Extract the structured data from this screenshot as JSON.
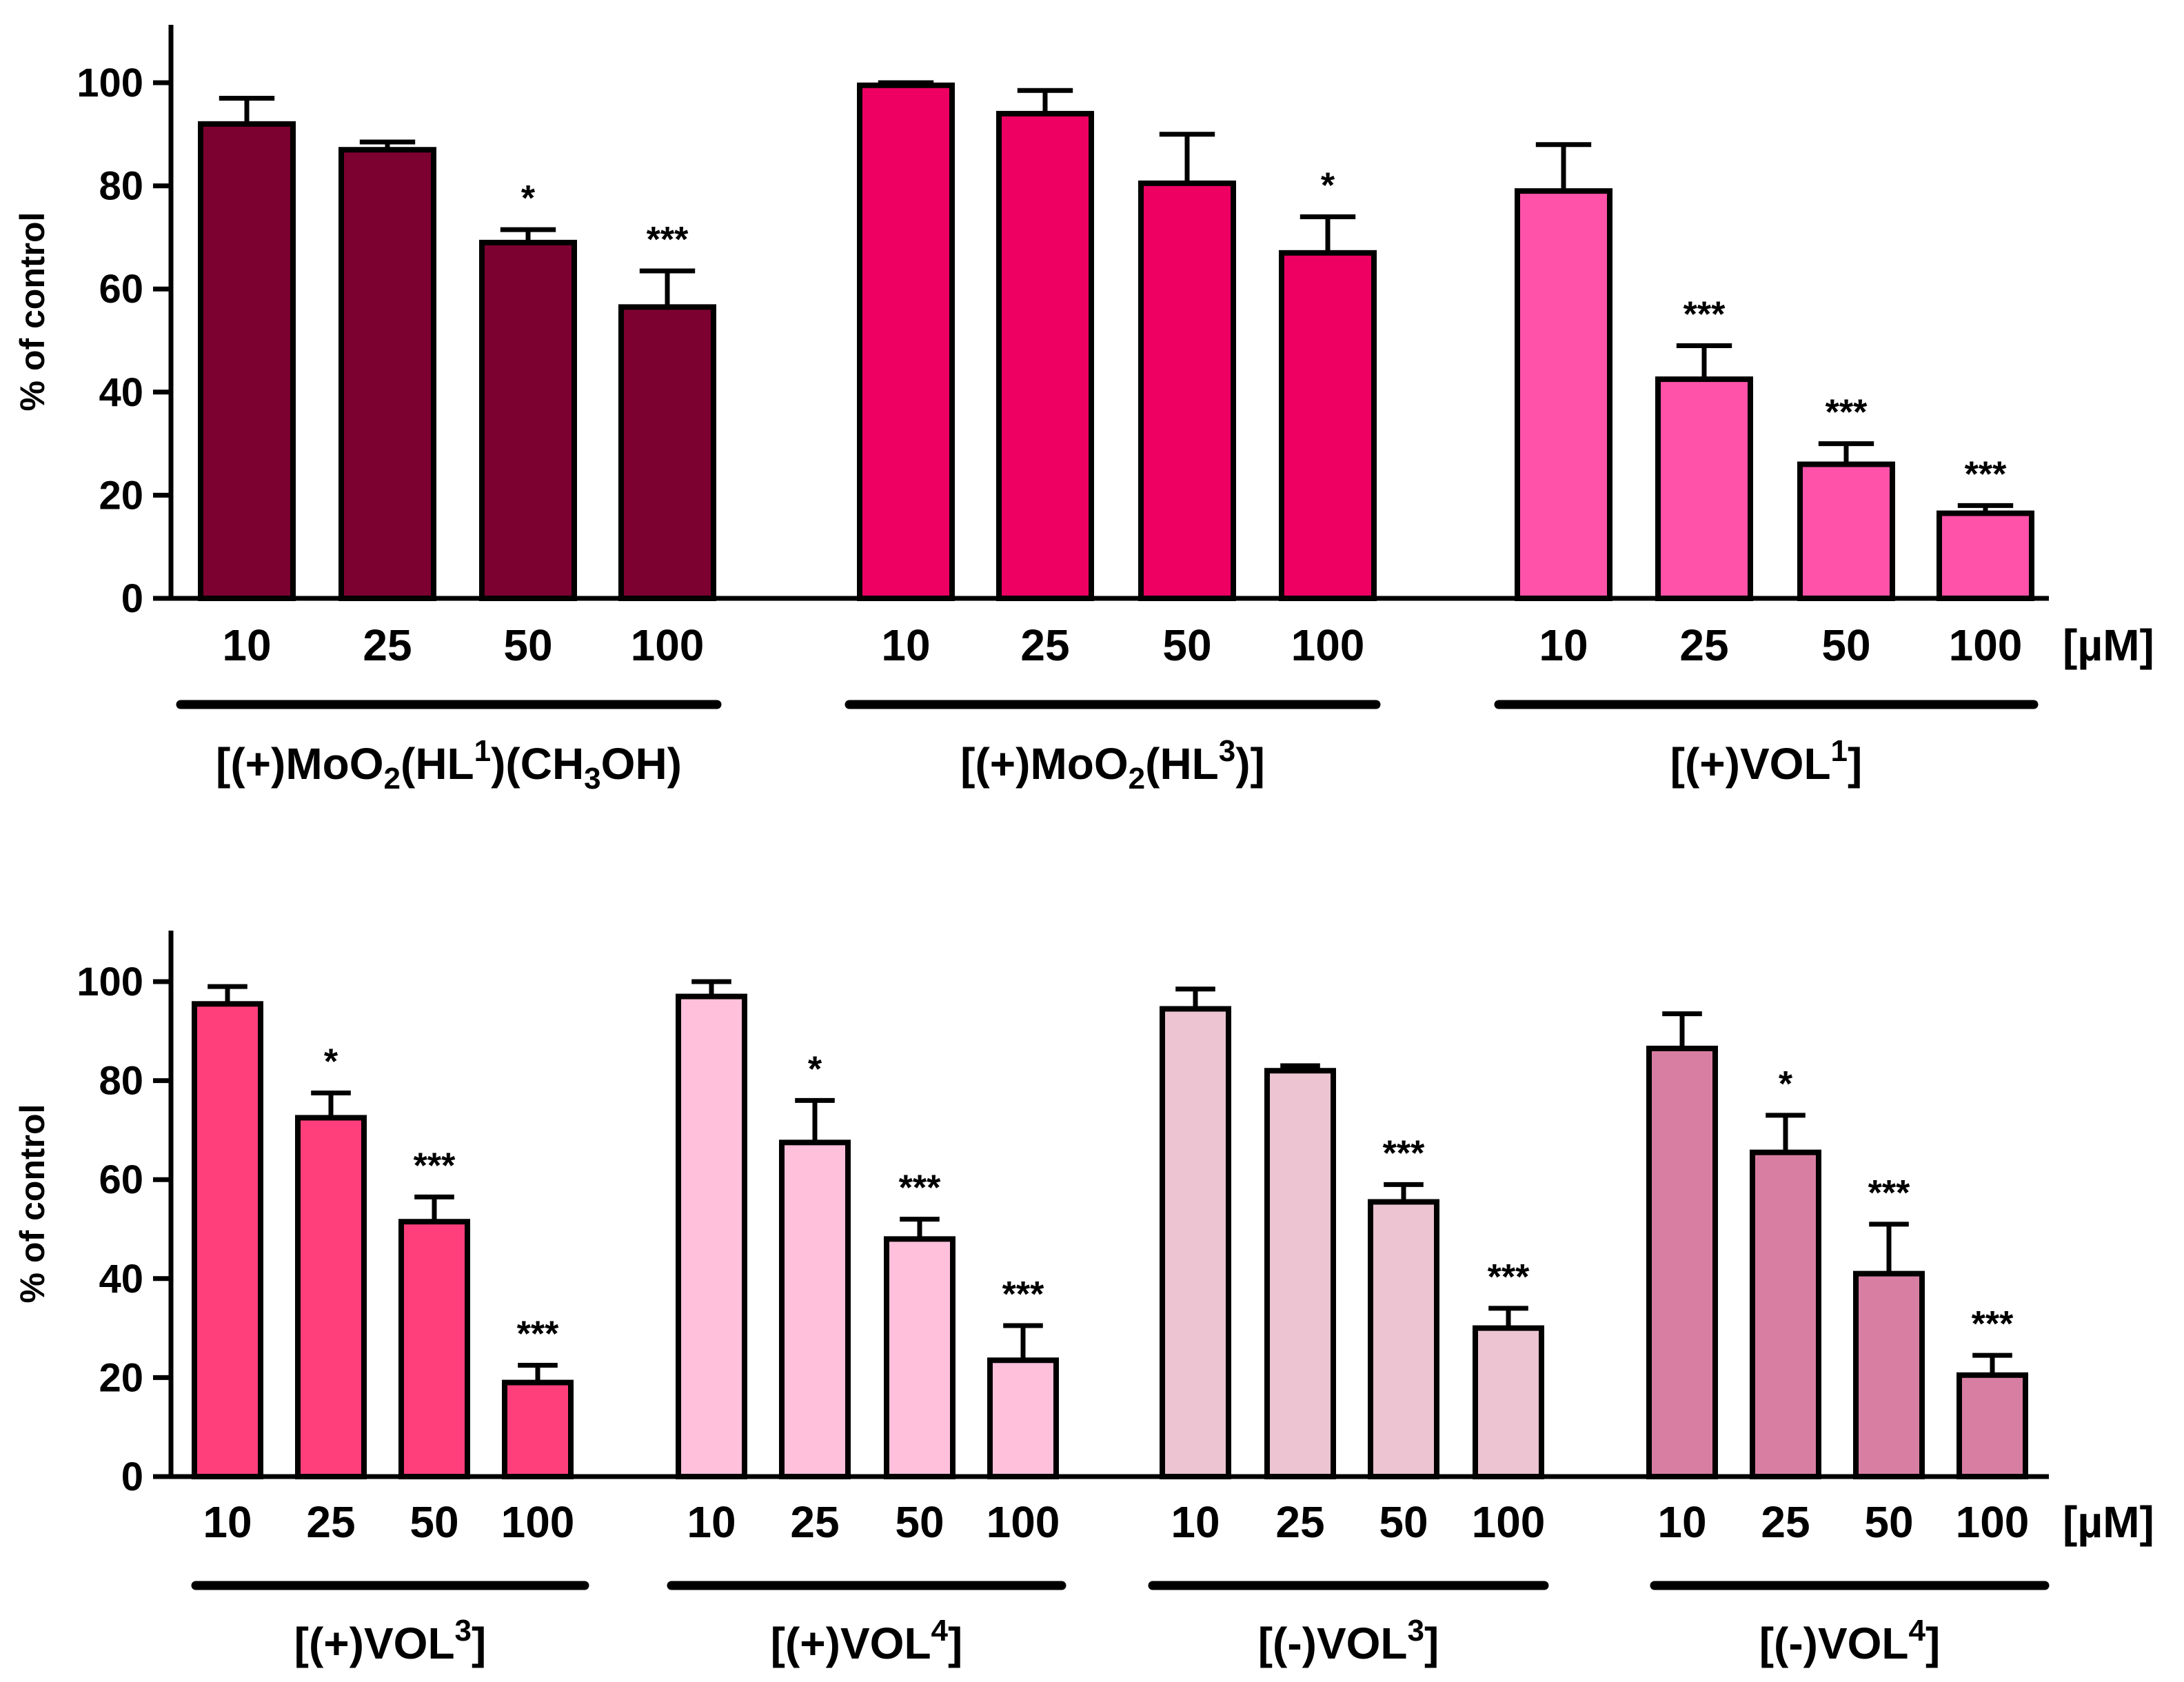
{
  "chart_data": [
    {
      "type": "bar",
      "ylabel": "% of control",
      "ylim": [
        0,
        110
      ],
      "yticks": [
        0,
        20,
        40,
        60,
        80,
        100
      ],
      "unit": "[µM]",
      "groups": [
        {
          "label": [
            {
              "t": "[(+)MoO"
            },
            {
              "t": "2",
              "s": "sub"
            },
            {
              "t": "(HL"
            },
            {
              "t": "1",
              "s": "sup"
            },
            {
              "t": ")(CH"
            },
            {
              "t": "3",
              "s": "sub"
            },
            {
              "t": "OH)"
            }
          ],
          "color": "#7c0030",
          "categories": [
            "10",
            "25",
            "50",
            "100"
          ],
          "values": [
            92,
            87,
            69,
            56.5
          ],
          "errors": [
            5,
            1.5,
            2.5,
            7
          ],
          "significance": [
            "",
            "",
            "*",
            "***"
          ]
        },
        {
          "label": [
            {
              "t": "[(+)MoO"
            },
            {
              "t": "2",
              "s": "sub"
            },
            {
              "t": "(HL"
            },
            {
              "t": "3",
              "s": "sup"
            },
            {
              "t": ")]"
            }
          ],
          "color": "#ee0063",
          "categories": [
            "10",
            "25",
            "50",
            "100"
          ],
          "values": [
            99.5,
            94,
            80.5,
            67
          ],
          "errors": [
            0.5,
            4.5,
            9.5,
            7
          ],
          "significance": [
            "",
            "",
            "",
            "*"
          ]
        },
        {
          "label": [
            {
              "t": "[(+)VOL"
            },
            {
              "t": "1",
              "s": "sup"
            },
            {
              "t": "]"
            }
          ],
          "color": "#ff52a8",
          "categories": [
            "10",
            "25",
            "50",
            "100"
          ],
          "values": [
            79,
            42.5,
            26,
            16.5
          ],
          "errors": [
            9,
            6.5,
            4,
            1.5
          ],
          "significance": [
            "",
            "***",
            "***",
            "***"
          ]
        }
      ]
    },
    {
      "type": "bar",
      "ylabel": "% of control",
      "ylim": [
        0,
        110
      ],
      "yticks": [
        0,
        20,
        40,
        60,
        80,
        100
      ],
      "unit": "[µM]",
      "groups": [
        {
          "label": [
            {
              "t": "[(+)VOL"
            },
            {
              "t": "3",
              "s": "sup"
            },
            {
              "t": "]"
            }
          ],
          "color": "#ff3f7c",
          "categories": [
            "10",
            "25",
            "50",
            "100"
          ],
          "values": [
            95.5,
            72.5,
            51.5,
            19
          ],
          "errors": [
            3.5,
            5,
            5,
            3.5
          ],
          "significance": [
            "",
            "*",
            "***",
            "***"
          ]
        },
        {
          "label": [
            {
              "t": "[(+)VOL"
            },
            {
              "t": "4",
              "s": "sup"
            },
            {
              "t": "]"
            }
          ],
          "color": "#ffc0dc",
          "categories": [
            "10",
            "25",
            "50",
            "100"
          ],
          "values": [
            97,
            67.5,
            48,
            23.5
          ],
          "errors": [
            3,
            8.5,
            4,
            7
          ],
          "significance": [
            "",
            "*",
            "***",
            "***"
          ]
        },
        {
          "label": [
            {
              "t": "[(-)VOL"
            },
            {
              "t": "3",
              "s": "sup"
            },
            {
              "t": "]"
            }
          ],
          "color": "#ecc4d2",
          "categories": [
            "10",
            "25",
            "50",
            "100"
          ],
          "values": [
            94.5,
            82,
            55.5,
            30
          ],
          "errors": [
            4,
            1,
            3.5,
            4
          ],
          "significance": [
            "",
            "",
            "***",
            "***"
          ]
        },
        {
          "label": [
            {
              "t": "[(-)VOL"
            },
            {
              "t": "4",
              "s": "sup"
            },
            {
              "t": "]"
            }
          ],
          "color": "#d87ea2",
          "categories": [
            "10",
            "25",
            "50",
            "100"
          ],
          "values": [
            86.5,
            65.5,
            41,
            20.5
          ],
          "errors": [
            7,
            7.5,
            10,
            4
          ],
          "significance": [
            "",
            "*",
            "***",
            "***"
          ]
        }
      ]
    }
  ]
}
